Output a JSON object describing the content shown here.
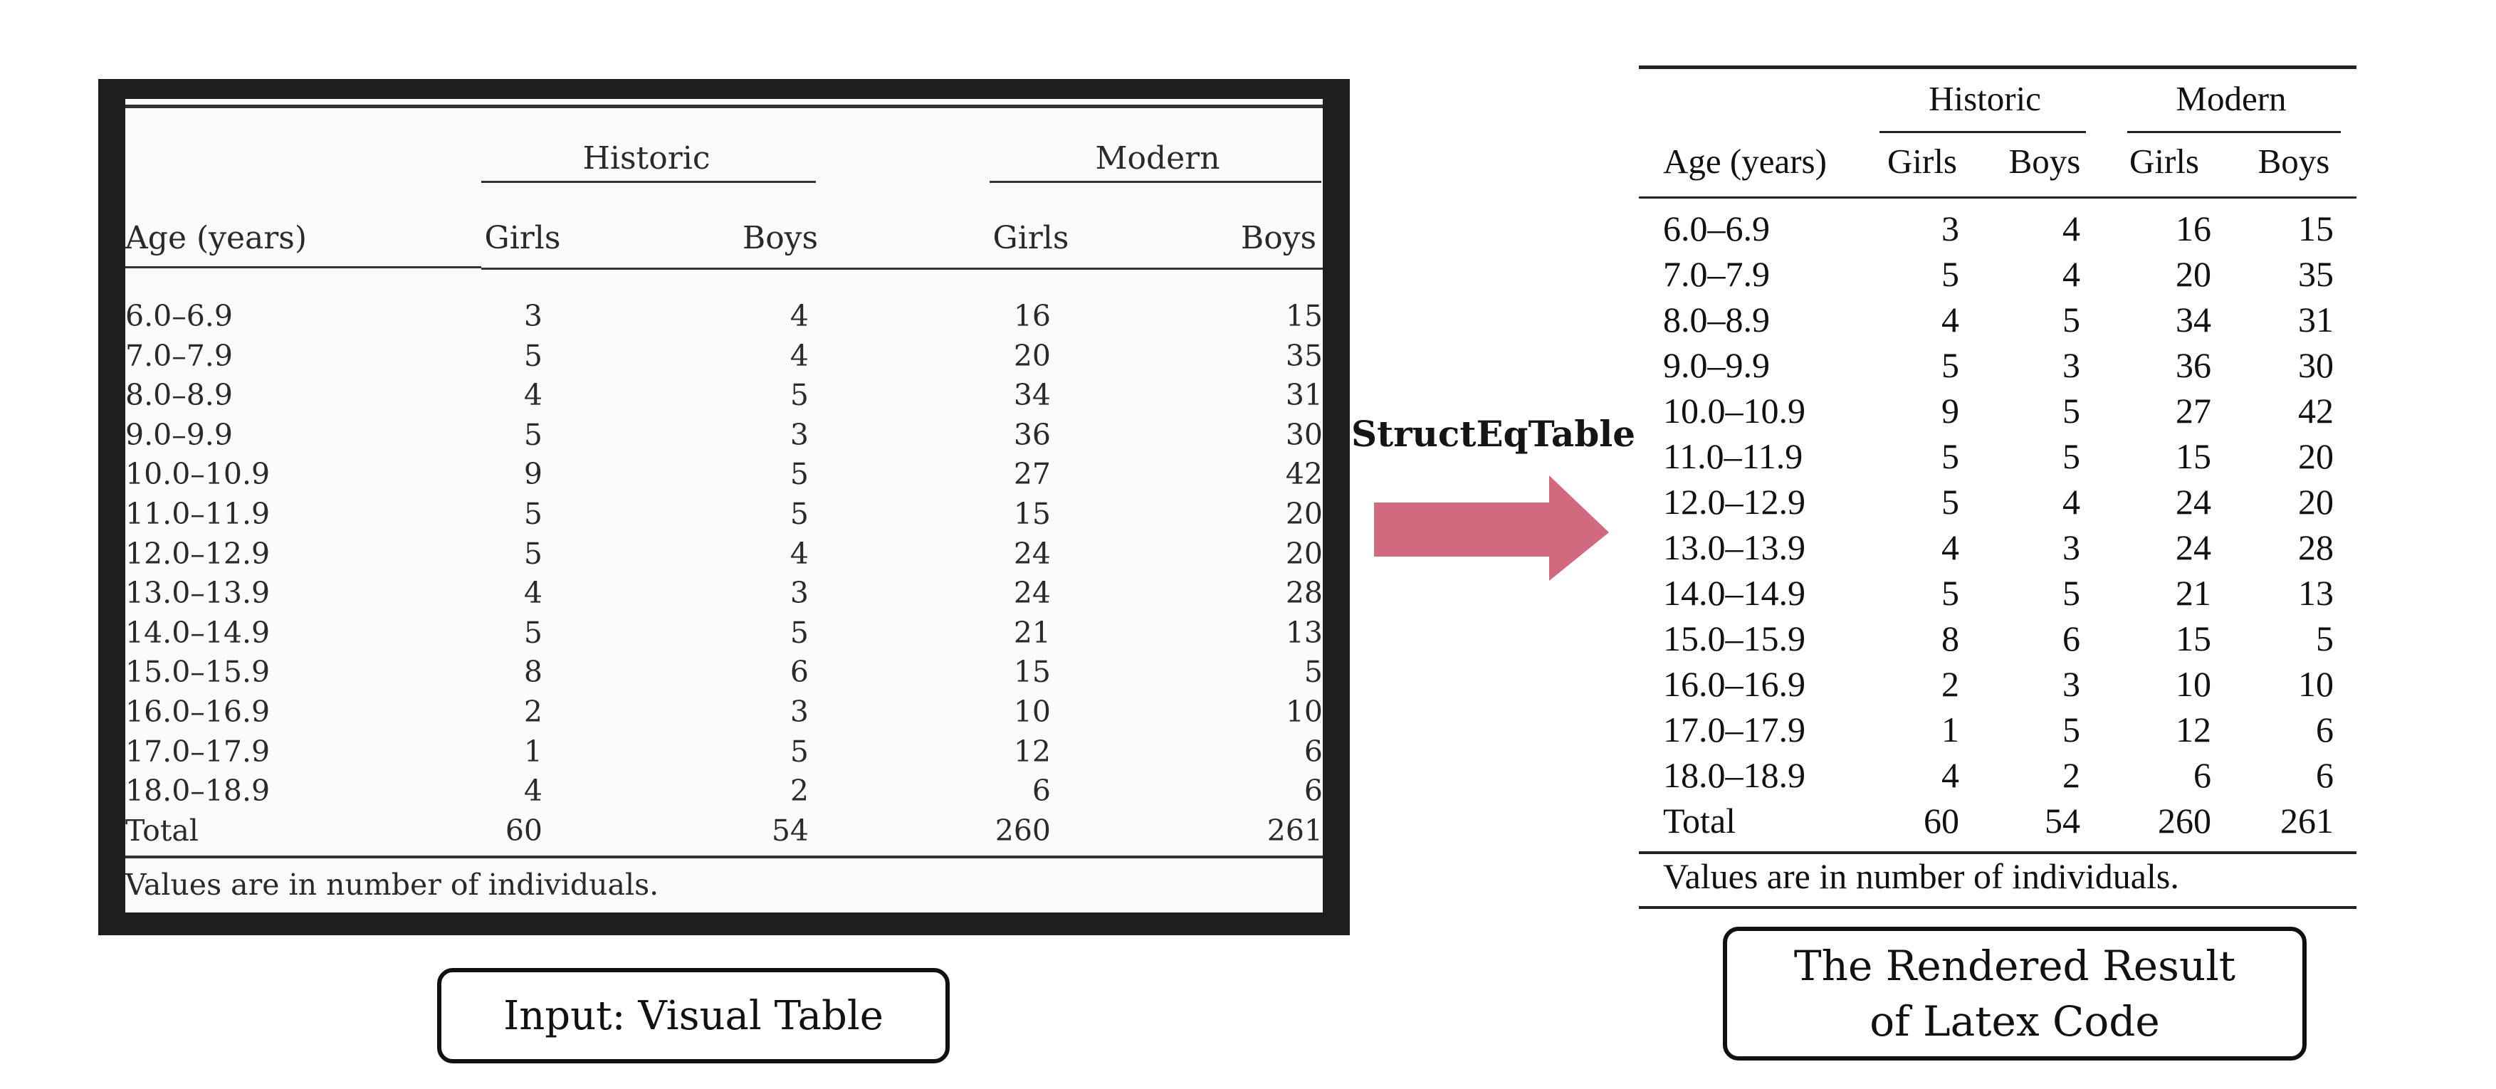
{
  "left_table": {
    "group_headers": [
      "Historic",
      "Modern"
    ],
    "col_headers": [
      "Age (years)",
      "Girls",
      "Boys",
      "Girls",
      "Boys"
    ],
    "rows": [
      [
        "6.0–6.9",
        "3",
        "4",
        "16",
        "15"
      ],
      [
        "7.0–7.9",
        "5",
        "4",
        "20",
        "35"
      ],
      [
        "8.0–8.9",
        "4",
        "5",
        "34",
        "31"
      ],
      [
        "9.0–9.9",
        "5",
        "3",
        "36",
        "30"
      ],
      [
        "10.0–10.9",
        "9",
        "5",
        "27",
        "42"
      ],
      [
        "11.0–11.9",
        "5",
        "5",
        "15",
        "20"
      ],
      [
        "12.0–12.9",
        "5",
        "4",
        "24",
        "20"
      ],
      [
        "13.0–13.9",
        "4",
        "3",
        "24",
        "28"
      ],
      [
        "14.0–14.9",
        "5",
        "5",
        "21",
        "13"
      ],
      [
        "15.0–15.9",
        "8",
        "6",
        "15",
        "5"
      ],
      [
        "16.0–16.9",
        "2",
        "3",
        "10",
        "10"
      ],
      [
        "17.0–17.9",
        "1",
        "5",
        "12",
        "6"
      ],
      [
        "18.0–18.9",
        "4",
        "2",
        "6",
        "6"
      ],
      [
        "Total",
        "60",
        "54",
        "260",
        "261"
      ]
    ],
    "footnote": "Values are in number of individuals."
  },
  "arrow": {
    "label": "StructEqTable",
    "color": "#d06a7e"
  },
  "right_table": {
    "group_headers": [
      "Historic",
      "Modern"
    ],
    "col_headers": [
      "Age (years)",
      "Girls",
      "Boys",
      "Girls",
      "Boys"
    ],
    "rows": [
      [
        "6.0–6.9",
        "3",
        "4",
        "16",
        "15"
      ],
      [
        "7.0–7.9",
        "5",
        "4",
        "20",
        "35"
      ],
      [
        "8.0–8.9",
        "4",
        "5",
        "34",
        "31"
      ],
      [
        "9.0–9.9",
        "5",
        "3",
        "36",
        "30"
      ],
      [
        "10.0–10.9",
        "9",
        "5",
        "27",
        "42"
      ],
      [
        "11.0–11.9",
        "5",
        "5",
        "15",
        "20"
      ],
      [
        "12.0–12.9",
        "5",
        "4",
        "24",
        "20"
      ],
      [
        "13.0–13.9",
        "4",
        "3",
        "24",
        "28"
      ],
      [
        "14.0–14.9",
        "5",
        "5",
        "21",
        "13"
      ],
      [
        "15.0–15.9",
        "8",
        "6",
        "15",
        "5"
      ],
      [
        "16.0–16.9",
        "2",
        "3",
        "10",
        "10"
      ],
      [
        "17.0–17.9",
        "1",
        "5",
        "12",
        "6"
      ],
      [
        "18.0–18.9",
        "4",
        "2",
        "6",
        "6"
      ],
      [
        "Total",
        "60",
        "54",
        "260",
        "261"
      ]
    ],
    "footnote": "Values are in number of individuals."
  },
  "captions": {
    "left": "Input: Visual Table",
    "right_line1": "The Rendered Result",
    "right_line2": "of Latex Code"
  }
}
